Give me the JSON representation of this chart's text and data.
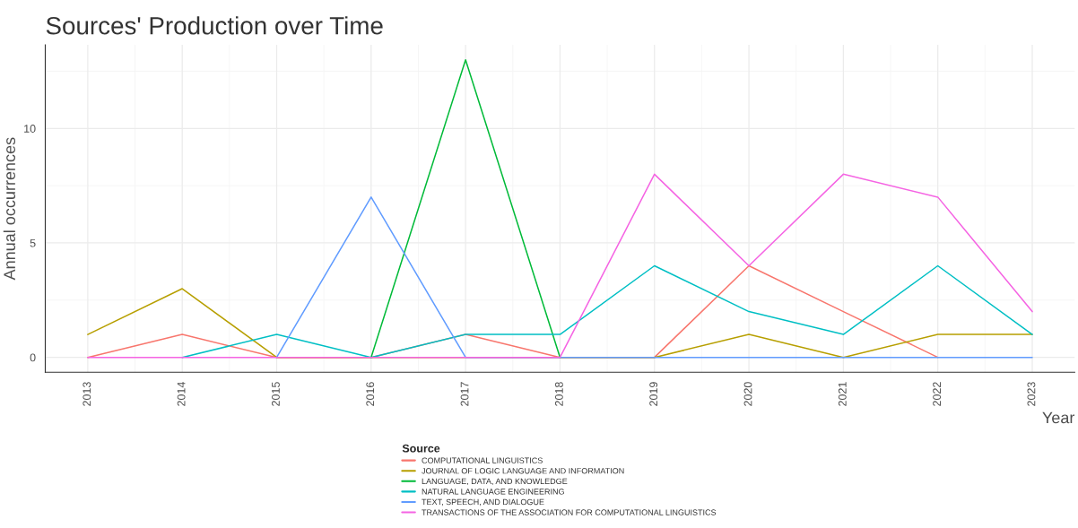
{
  "chart_data": {
    "type": "line",
    "title": "Sources' Production over Time",
    "xlabel": "Year",
    "ylabel": "Annual occurrences",
    "legend_title": "Source",
    "legend": "bottom",
    "grid": true,
    "x": [
      2013,
      2014,
      2015,
      2016,
      2017,
      2018,
      2019,
      2020,
      2021,
      2022,
      2023
    ],
    "xlim": [
      2012.55,
      2023.45
    ],
    "xticks": [
      2013,
      2014,
      2015,
      2016,
      2017,
      2018,
      2019,
      2020,
      2021,
      2022,
      2023
    ],
    "ylim": [
      -0.65,
      13.65
    ],
    "yticks": [
      0,
      5,
      10
    ],
    "series": [
      {
        "name": "COMPUTATIONAL LINGUISTICS",
        "color": "#f8766d",
        "values": [
          0,
          1,
          0,
          0,
          1,
          0,
          0,
          4,
          2,
          0,
          null
        ]
      },
      {
        "name": "JOURNAL OF LOGIC LANGUAGE AND INFORMATION",
        "color": "#b79f00",
        "values": [
          1,
          3,
          0,
          0,
          0,
          0,
          0,
          1,
          0,
          1,
          1
        ]
      },
      {
        "name": "LANGUAGE, DATA, AND KNOWLEDGE",
        "color": "#00ba38",
        "values": [
          null,
          null,
          null,
          0,
          13,
          0,
          null,
          null,
          null,
          null,
          null
        ]
      },
      {
        "name": "NATURAL LANGUAGE ENGINEERING",
        "color": "#00bfc4",
        "values": [
          null,
          0,
          1,
          0,
          1,
          1,
          4,
          2,
          1,
          4,
          1
        ]
      },
      {
        "name": "TEXT, SPEECH, AND DIALOGUE",
        "color": "#619cff",
        "values": [
          null,
          null,
          0,
          7,
          0,
          0,
          0,
          0,
          0,
          0,
          0
        ]
      },
      {
        "name": "TRANSACTIONS OF THE ASSOCIATION FOR COMPUTATIONAL LINGUISTICS",
        "color": "#f564e3",
        "values": [
          0,
          0,
          0,
          0,
          0,
          0,
          8,
          4,
          8,
          7,
          2
        ]
      }
    ]
  }
}
